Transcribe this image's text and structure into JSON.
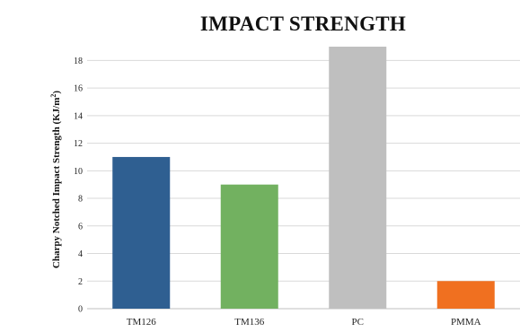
{
  "chart_data": {
    "type": "bar",
    "title": "IMPACT STRENGTH",
    "xlabel": "",
    "ylabel": "Charpy Notched Impact Strength (KJ/m",
    "ylabel_superscript": "2",
    "ylabel_close": ")",
    "categories": [
      "TM126",
      "TM136",
      "PC",
      "PMMA"
    ],
    "values": [
      11,
      9,
      19,
      2
    ],
    "colors": [
      "#2f5f91",
      "#72b160",
      "#bfbfbf",
      "#f07020"
    ],
    "ylim": [
      0,
      19
    ],
    "yticks": [
      0,
      2,
      4,
      6,
      8,
      10,
      12,
      14,
      16,
      18
    ],
    "grid": true,
    "legend": "none"
  }
}
